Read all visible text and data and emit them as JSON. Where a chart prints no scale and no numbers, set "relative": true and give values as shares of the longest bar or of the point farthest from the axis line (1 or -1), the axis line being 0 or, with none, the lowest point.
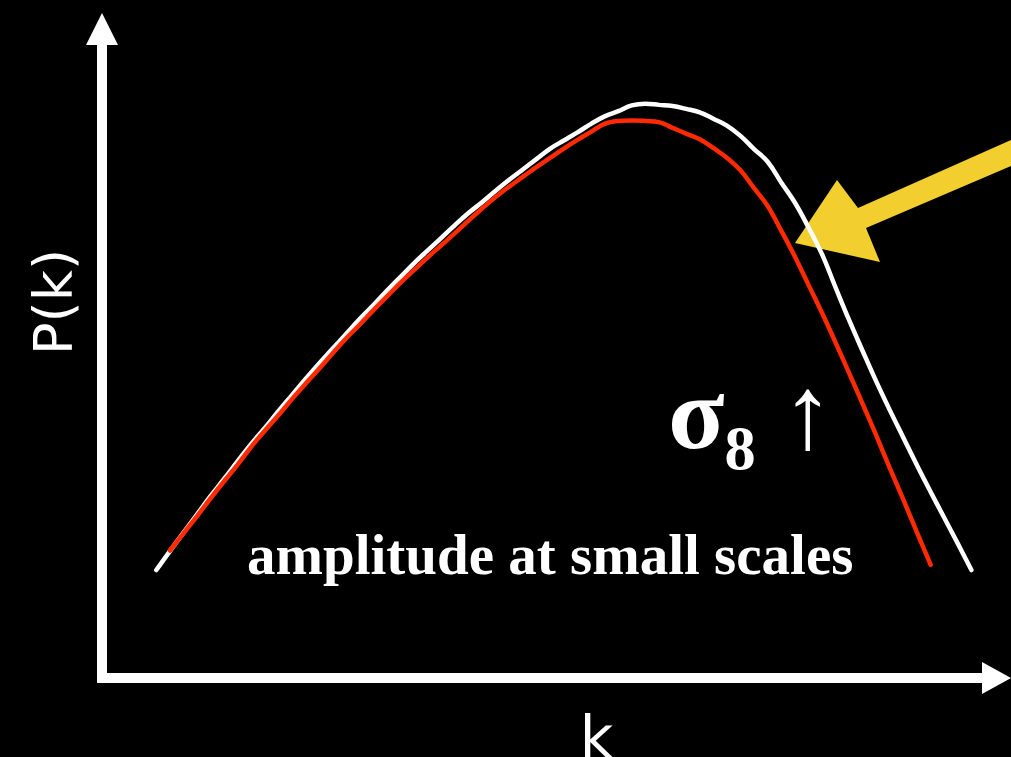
{
  "chart_data": {
    "type": "line",
    "relative": true,
    "xlabel": "k",
    "ylabel": "P(k)",
    "categories": [
      null,
      null,
      null,
      null,
      null,
      null,
      null,
      null,
      null,
      null,
      null,
      null,
      null,
      null,
      null,
      null,
      null,
      null,
      null,
      null,
      null,
      null,
      null,
      null,
      null,
      null,
      null,
      null,
      null,
      null,
      null,
      null,
      null,
      null,
      null,
      null,
      null,
      null,
      null,
      null,
      null,
      null,
      null,
      null,
      null,
      null,
      null,
      null,
      null,
      null,
      null,
      null,
      null,
      null,
      null,
      null,
      null,
      null,
      null,
      null,
      null,
      null,
      null,
      null,
      null,
      null
    ],
    "series": [
      {
        "color": "#ffffff",
        "values": [
          null,
          null,
          null,
          null,
          0.188,
          0.221,
          0.253,
          0.285,
          0.317,
          0.347,
          0.378,
          0.408,
          0.436,
          0.465,
          0.493,
          0.521,
          0.548,
          0.574,
          0.6,
          0.626,
          0.65,
          0.675,
          0.699,
          0.723,
          0.745,
          0.767,
          0.789,
          0.81,
          0.829,
          0.849,
          0.868,
          0.886,
          0.904,
          0.922,
          0.936,
          0.95,
          0.965,
          0.978,
          0.987,
          0.997,
          1,
          0.998,
          0.996,
          0.991,
          0.985,
          0.974,
          0.962,
          0.944,
          0.921,
          0.899,
          0.863,
          0.828,
          0.785,
          0.738,
          0.68,
          0.623,
          0.569,
          0.516,
          0.466,
          0.418,
          0.37,
          0.324,
          0.279,
          0.234,
          0.188,
          null
        ]
      },
      {
        "color": "#ff2a00",
        "values": [
          null,
          null,
          null,
          null,
          null,
          0.222,
          0.252,
          0.282,
          0.313,
          0.343,
          0.372,
          0.403,
          0.431,
          0.458,
          0.486,
          0.513,
          0.539,
          0.566,
          0.592,
          0.616,
          0.641,
          0.665,
          0.689,
          0.711,
          0.733,
          0.754,
          0.775,
          0.797,
          0.818,
          0.838,
          0.856,
          0.873,
          0.89,
          0.906,
          0.922,
          0.937,
          0.951,
          0.965,
          0.97,
          0.971,
          0.97,
          0.968,
          0.958,
          0.948,
          0.938,
          0.923,
          0.906,
          0.884,
          0.853,
          0.822,
          0.779,
          0.734,
          0.685,
          0.636,
          0.584,
          0.531,
          0.477,
          0.422,
          0.365,
          0.31,
          0.253,
          0.197,
          null,
          null,
          null,
          null
        ]
      }
    ],
    "annotations": [
      "σ₈ ↑",
      "amplitude at small scales"
    ]
  }
}
